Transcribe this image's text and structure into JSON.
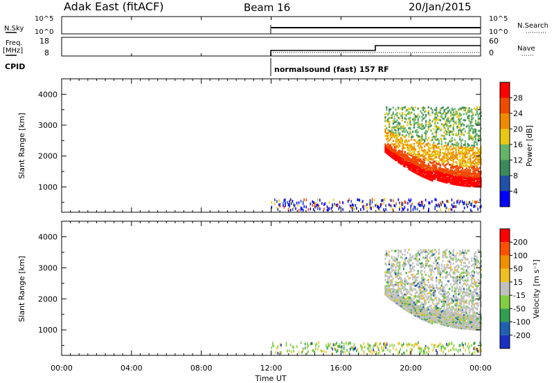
{
  "header": {
    "title": "Adak East (fitACF)",
    "beam": "Beam 16",
    "date": "20/Jan/2015"
  },
  "top_panels": {
    "nsky_label": "N.Sky",
    "nsky_ticks": [
      "10^5",
      "10^0"
    ],
    "nsearch_label": "N.Search",
    "nsearch_ticks": [
      "10^5",
      "10^0"
    ],
    "freq_label_line1": "Freq.",
    "freq_label_line2": "[MHz]",
    "freq_ticks": [
      "18",
      "8"
    ],
    "nave_label": "Nave",
    "nave_ticks": [
      "60",
      "0"
    ],
    "cpid_label": "CPID",
    "cpid_text": "normalsound (fast) 157 RF"
  },
  "colors": {
    "power_scale": [
      "#0000ff",
      "#2050a8",
      "#3a8a5a",
      "#66b36a",
      "#e8c814",
      "#f08a00",
      "#f04a00",
      "#ff0000"
    ],
    "velocity_scale": [
      "#ff0000",
      "#ff5000",
      "#f09000",
      "#f0c020",
      "#c0c0c0",
      "#80d040",
      "#30a050",
      "#2060b0",
      "#1a30c0"
    ]
  },
  "chart_data": [
    {
      "type": "heatmap",
      "name": "power",
      "ylabel": "Slant Range [km]",
      "y_ticks": [
        1000,
        2000,
        3000,
        4000
      ],
      "ylim": [
        180,
        4500
      ],
      "colorbar_label": "Power [dB]",
      "colorbar_ticks": [
        "4",
        "8",
        "12",
        "16",
        "20",
        "24",
        "28"
      ],
      "colorbar_range": [
        0,
        32
      ],
      "data_start_ut": "12:00",
      "echo_region": {
        "start_ut": "18:30",
        "end_ut": "00:00",
        "min_range_km": 900,
        "max_range_km": 3550
      }
    },
    {
      "type": "heatmap",
      "name": "velocity",
      "ylabel": "Slant Range [km]",
      "y_ticks": [
        1000,
        2000,
        3000,
        4000
      ],
      "ylim": [
        180,
        4500
      ],
      "colorbar_label": "Velocity [m s⁻¹]",
      "colorbar_ticks": [
        "200",
        "100",
        "50",
        "15",
        "-15",
        "-50",
        "-100",
        "-200"
      ],
      "data_start_ut": "12:00",
      "echo_region": {
        "start_ut": "18:30",
        "end_ut": "00:00",
        "min_range_km": 900,
        "max_range_km": 3550
      }
    }
  ],
  "x_axis": {
    "label": "Time UT",
    "ticks": [
      "00:00",
      "04:00",
      "08:00",
      "12:00",
      "16:00",
      "20:00",
      "00:00"
    ],
    "range_hours": [
      0,
      24
    ]
  }
}
